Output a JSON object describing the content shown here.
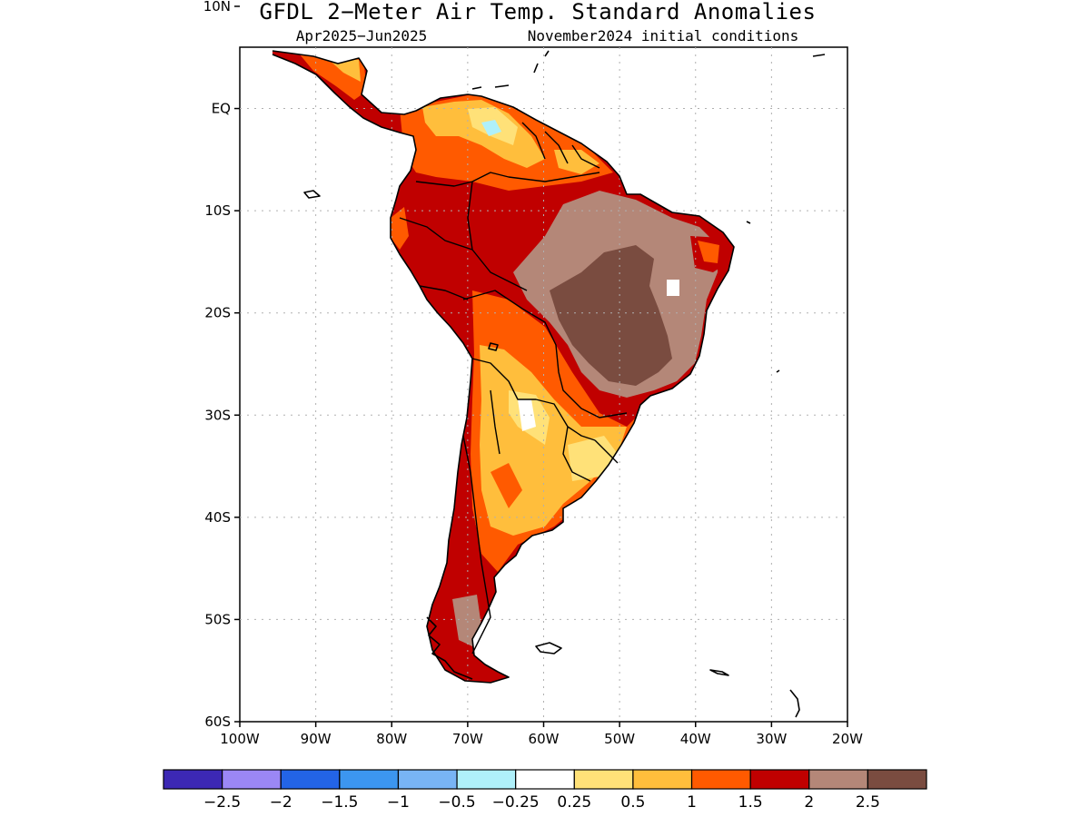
{
  "title": "GFDL 2−Meter Air Temp. Standard Anomalies",
  "subtitle_left": "Apr2025−Jun2025",
  "subtitle_right": "November2024 initial conditions",
  "map": {
    "region": "South America",
    "lon_range": [
      -100,
      -20
    ],
    "lat_range": [
      -60,
      6
    ],
    "lat_ticks": [
      {
        "value": 10,
        "label": "10N"
      },
      {
        "value": 0,
        "label": "EQ"
      },
      {
        "value": -10,
        "label": "10S"
      },
      {
        "value": -20,
        "label": "20S"
      },
      {
        "value": -30,
        "label": "30S"
      },
      {
        "value": -40,
        "label": "40S"
      },
      {
        "value": -50,
        "label": "50S"
      },
      {
        "value": -60,
        "label": "60S"
      }
    ],
    "lon_ticks": [
      {
        "value": -100,
        "label": "100W"
      },
      {
        "value": -90,
        "label": "90W"
      },
      {
        "value": -80,
        "label": "80W"
      },
      {
        "value": -70,
        "label": "70W"
      },
      {
        "value": -60,
        "label": "60W"
      },
      {
        "value": -50,
        "label": "50W"
      },
      {
        "value": -40,
        "label": "40W"
      },
      {
        "value": -30,
        "label": "30W"
      },
      {
        "value": -20,
        "label": "20W"
      }
    ],
    "grid": true
  },
  "colorbar": {
    "colors": [
      "#3c28b4",
      "#9b87f5",
      "#2364e6",
      "#3c96f0",
      "#78b4f5",
      "#aff0fa",
      "#ffffff",
      "#ffe178",
      "#ffbe3c",
      "#ff5a00",
      "#c00000",
      "#b48778",
      "#7a4c40"
    ],
    "labels": [
      "−2.5",
      "−2",
      "−1.5",
      "−1",
      "−0.5",
      "−0.25",
      "0.25",
      "0.5",
      "1",
      "1.5",
      "2",
      "2.5"
    ]
  }
}
